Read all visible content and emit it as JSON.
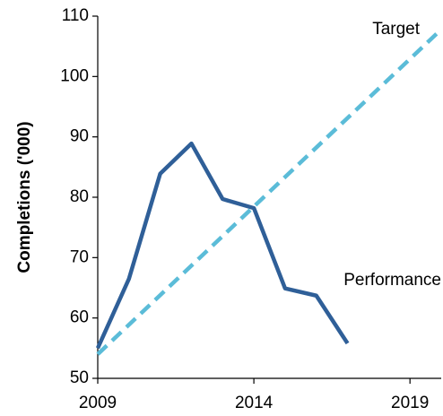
{
  "chart_data": {
    "type": "line",
    "y_label": "Completions ('000)",
    "xlim": [
      2009,
      2020
    ],
    "xticks": [
      2009,
      2014,
      2019
    ],
    "ylim": [
      50,
      110
    ],
    "yticks": [
      50,
      60,
      70,
      80,
      90,
      100,
      110
    ],
    "grid": false,
    "series": [
      {
        "name": "Performance",
        "color": "#2f5f98",
        "dashed": false,
        "x": [
          2009,
          2010,
          2011,
          2012,
          2013,
          2014,
          2015,
          2016,
          2017
        ],
        "values": [
          55,
          66.5,
          83.9,
          88.9,
          79.7,
          78.2,
          64.9,
          63.7,
          55.8
        ]
      },
      {
        "name": "Target",
        "color": "#5bbcd8",
        "dashed": true,
        "x": [
          2009,
          2020
        ],
        "values": [
          54,
          107.8
        ]
      }
    ]
  }
}
